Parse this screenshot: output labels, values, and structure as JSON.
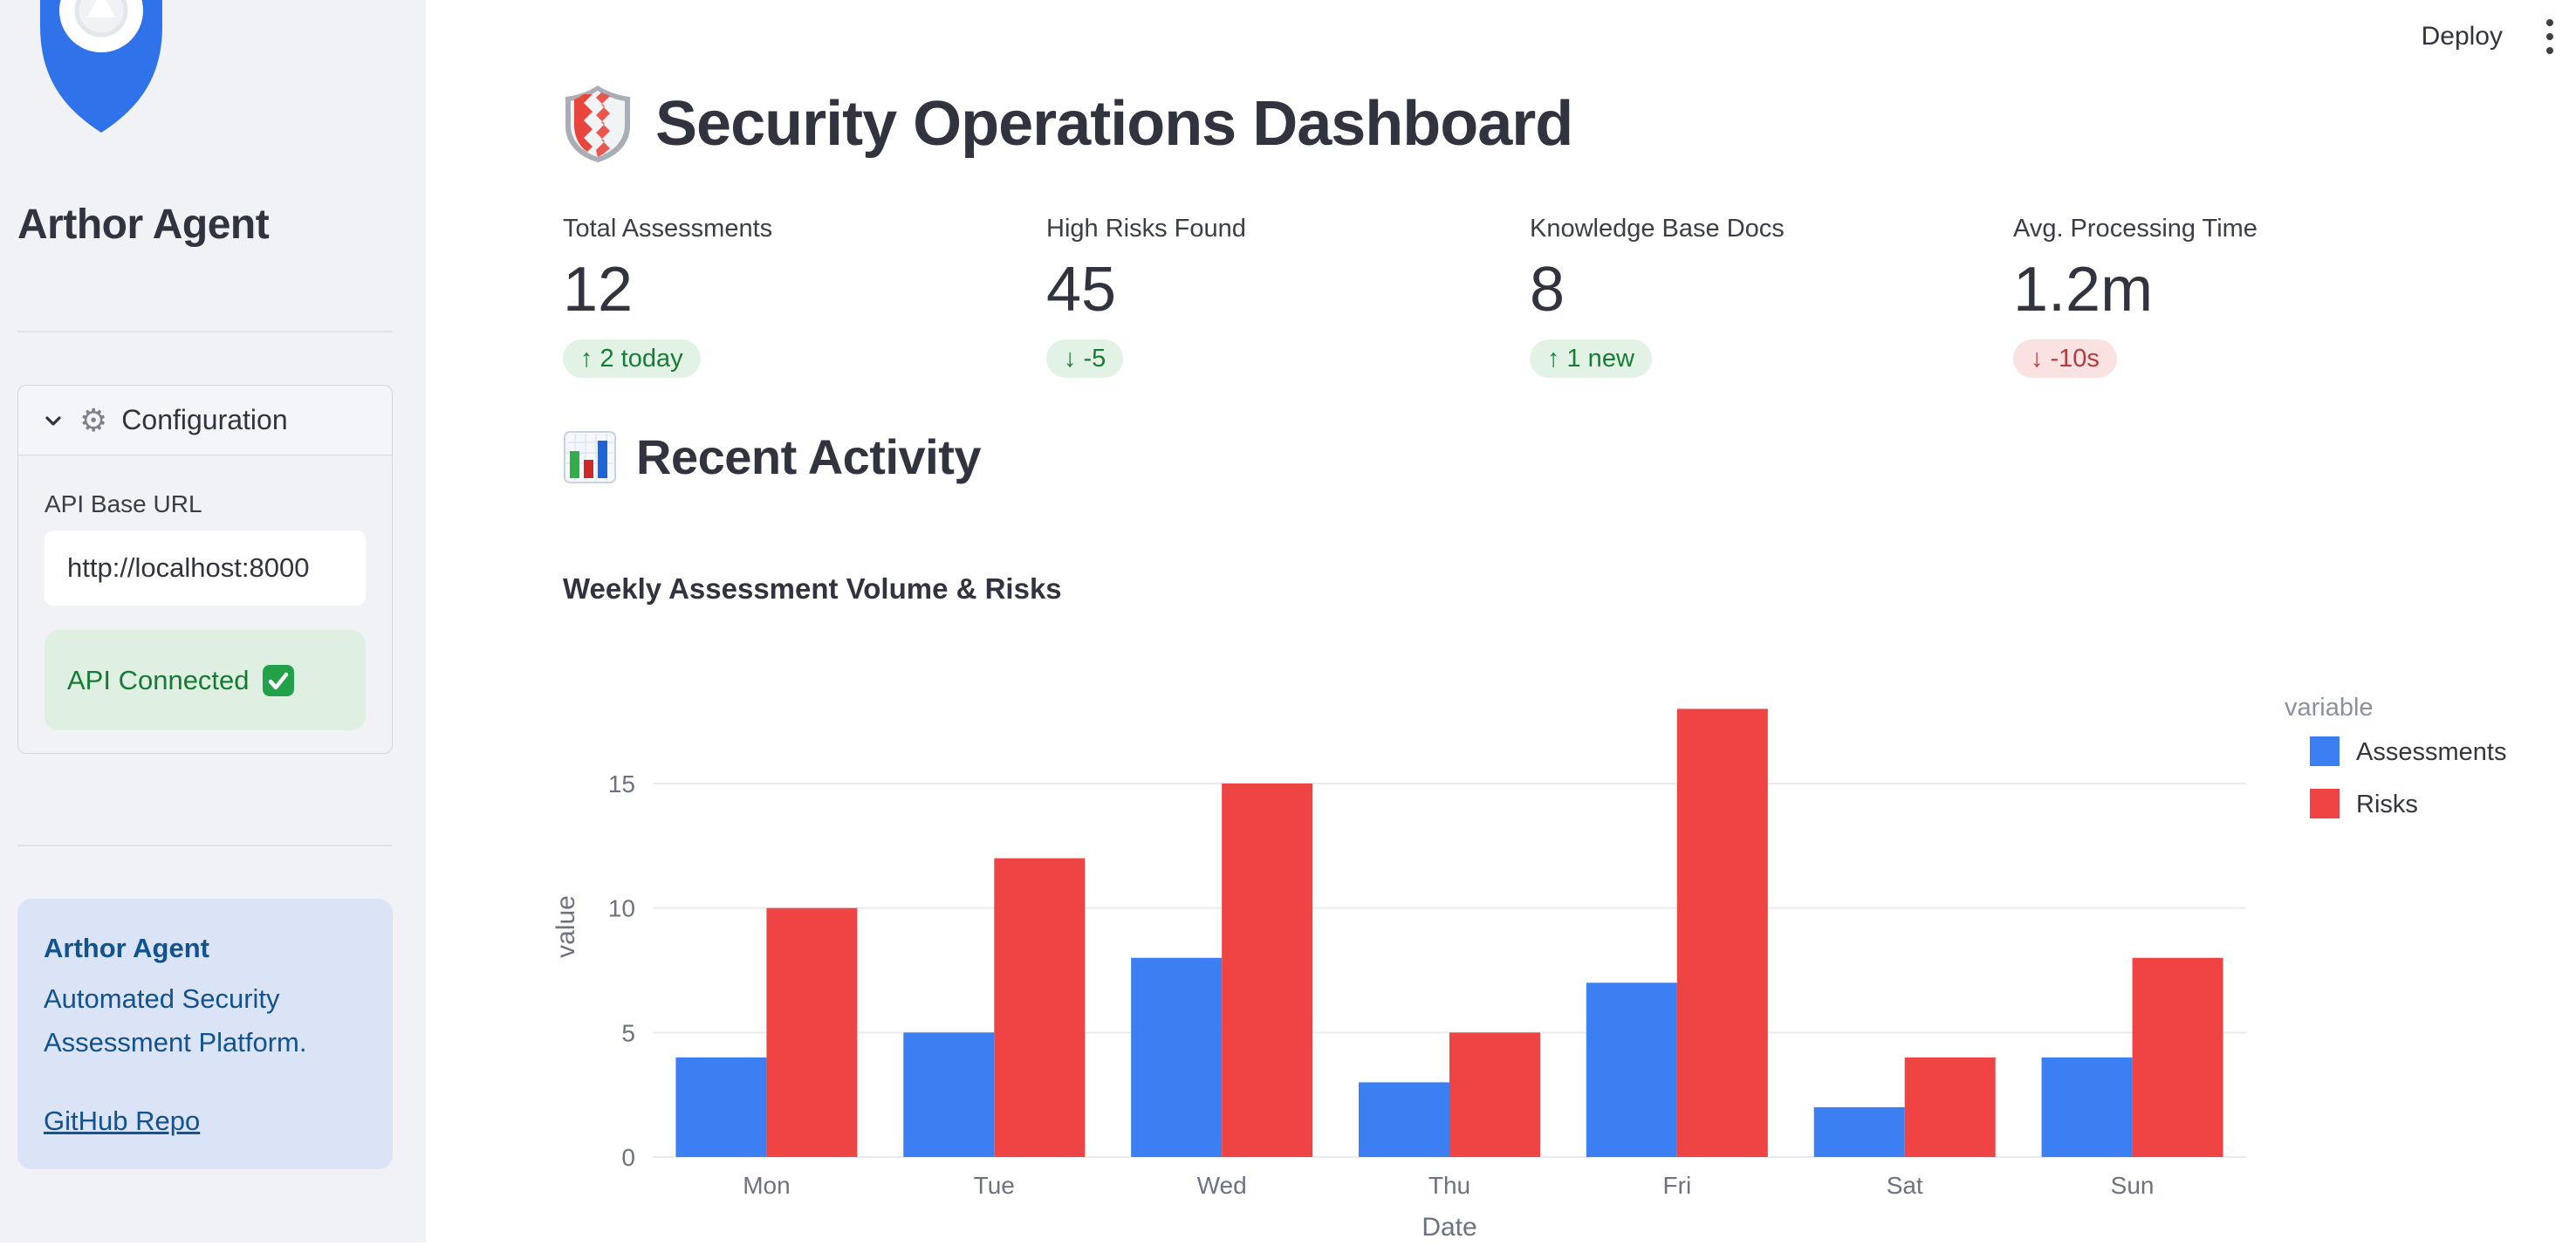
{
  "app": {
    "deploy_label": "Deploy"
  },
  "sidebar": {
    "title": "Arthor Agent",
    "config": {
      "header": "Configuration",
      "api_label": "API Base URL",
      "api_value": "http://localhost:8000",
      "status_text": "API Connected"
    },
    "about": {
      "title": "Arthor Agent",
      "line1": "Automated Security",
      "line2": "Assessment Platform.",
      "link_text": "GitHub Repo"
    }
  },
  "main": {
    "title": "Security Operations Dashboard",
    "section_title": "Recent Activity",
    "metrics": [
      {
        "label": "Total Assessments",
        "value": "12",
        "delta": "2 today",
        "direction": "up",
        "tone": "positive"
      },
      {
        "label": "High Risks Found",
        "value": "45",
        "delta": "-5",
        "direction": "down",
        "tone": "positive"
      },
      {
        "label": "Knowledge Base Docs",
        "value": "8",
        "delta": "1 new",
        "direction": "up",
        "tone": "positive"
      },
      {
        "label": "Avg. Processing Time",
        "value": "1.2m",
        "delta": "-10s",
        "direction": "down",
        "tone": "negative"
      }
    ]
  },
  "chart_data": {
    "type": "bar",
    "title": "Weekly Assessment Volume & Risks",
    "categories": [
      "Mon",
      "Tue",
      "Wed",
      "Thu",
      "Fri",
      "Sat",
      "Sun"
    ],
    "series": [
      {
        "name": "Assessments",
        "color": "#3b7ff2",
        "values": [
          4,
          5,
          8,
          3,
          7,
          2,
          4
        ]
      },
      {
        "name": "Risks",
        "color": "#ef4444",
        "values": [
          10,
          12,
          15,
          5,
          18,
          4,
          8
        ]
      }
    ],
    "xlabel": "Date",
    "ylabel": "value",
    "legend_title": "variable",
    "legend_position": "right-top",
    "yticks": [
      0,
      5,
      10,
      15
    ],
    "ylim": [
      0,
      19
    ],
    "grid": true
  },
  "colors": {
    "bar_blue": "#3b7ff2",
    "bar_red": "#ef4444",
    "delta_green_text": "#157d36",
    "delta_red_text": "#b43c3c",
    "info_blue_text": "#11528f",
    "sidebar_bg": "#f0f2f6"
  }
}
